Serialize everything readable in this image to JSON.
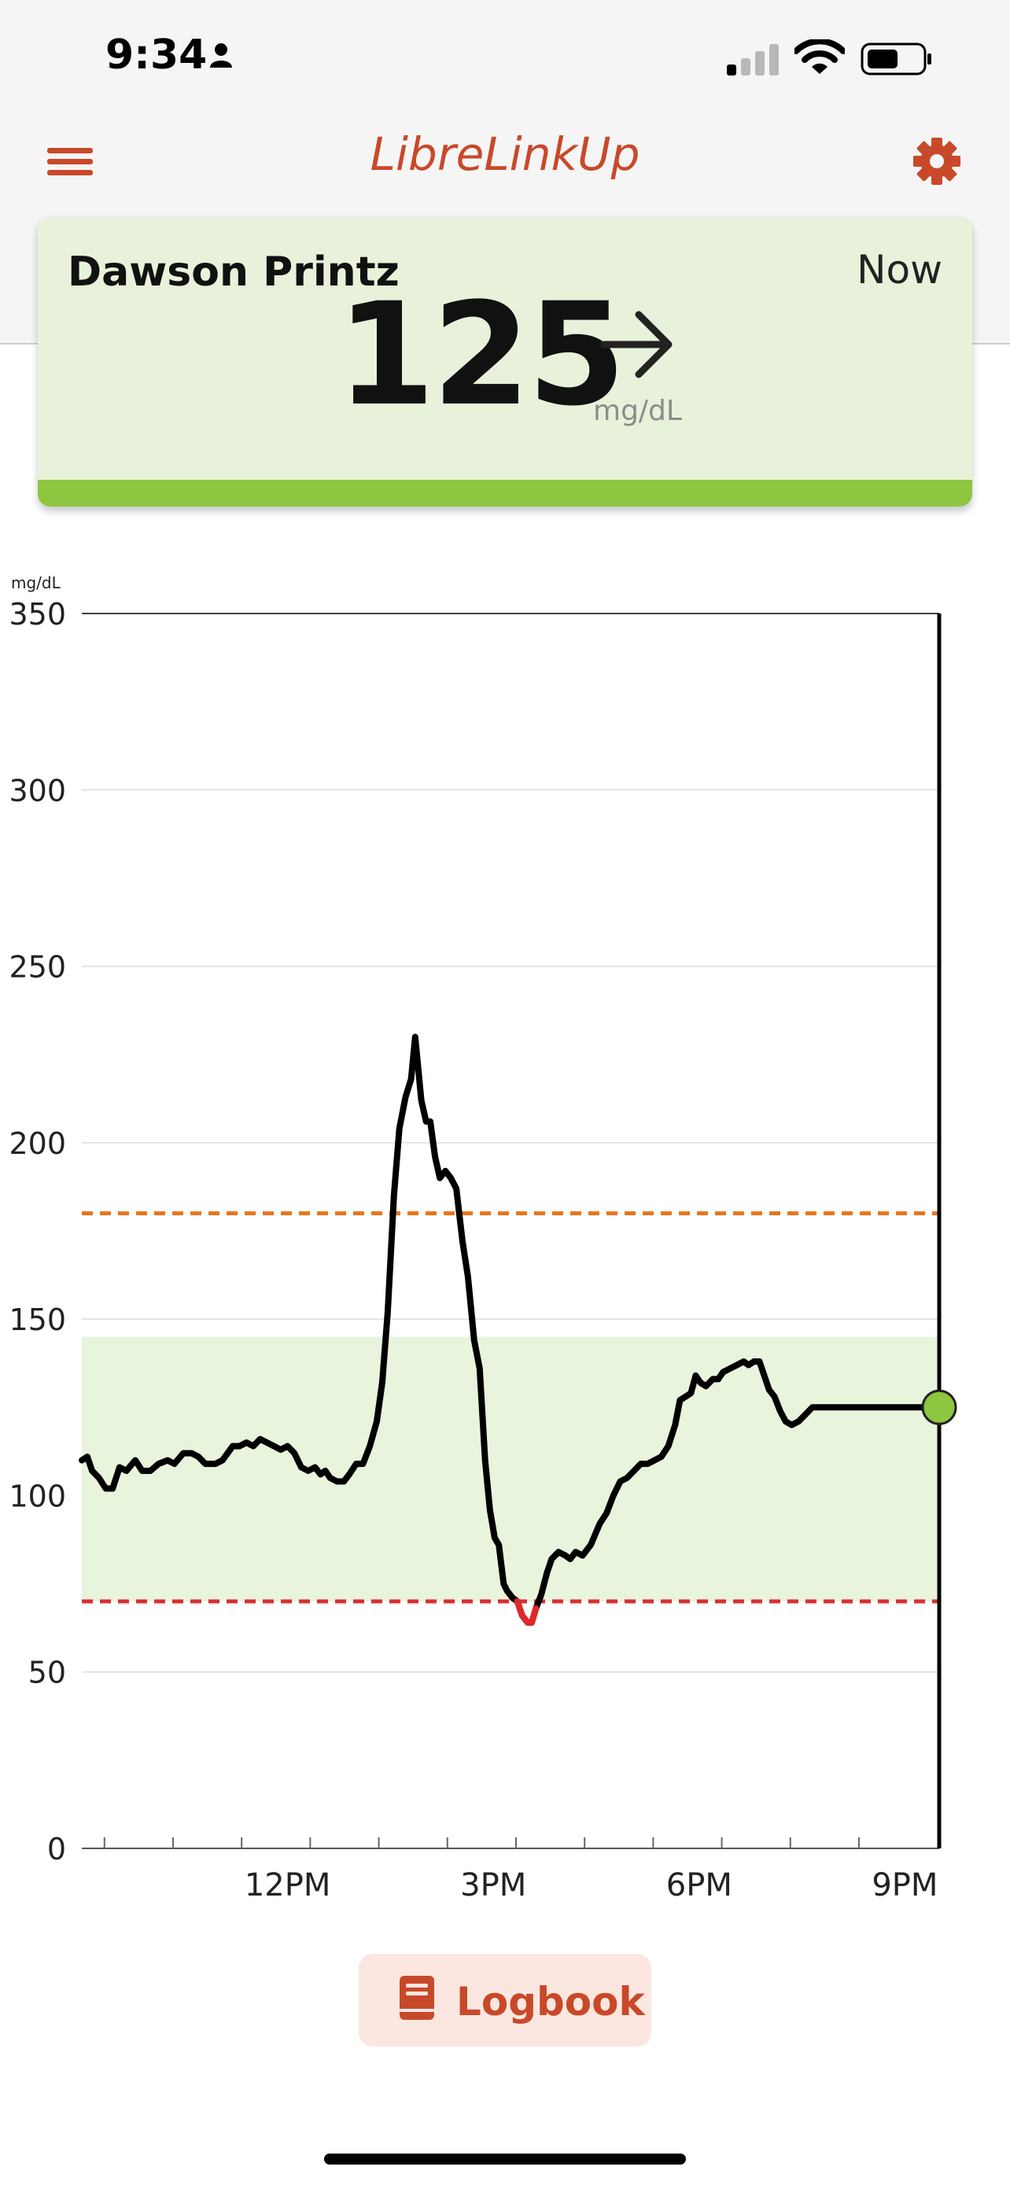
{
  "status_bar": {
    "time": "9:34"
  },
  "header": {
    "title": "LibreLinkUp"
  },
  "reading": {
    "patient_name": "Dawson Printz",
    "time_label": "Now",
    "value": "125",
    "unit": "mg/dL",
    "trend": "steady-arrow-icon",
    "status_color": "#8dc63f"
  },
  "logbook": {
    "label": "Logbook"
  },
  "colors": {
    "accent": "#c8492a",
    "card_bg": "#e8f2da",
    "target_range_fill": "#e8f4dc",
    "high_threshold": "#e8741c",
    "low_threshold": "#d83030",
    "low_segment": "#e02828",
    "current_point": "#8dc63f"
  },
  "chart_data": {
    "type": "line",
    "ylabel_unit": "mg/dL",
    "ylim": [
      0,
      350
    ],
    "yticks": [
      0,
      50,
      100,
      150,
      200,
      250,
      300,
      350
    ],
    "xlim": [
      9.0,
      21.5
    ],
    "xticks": [
      {
        "t": 12,
        "label": "12PM"
      },
      {
        "t": 15,
        "label": "3PM"
      },
      {
        "t": 18,
        "label": "6PM"
      },
      {
        "t": 21,
        "label": "9PM"
      }
    ],
    "minor_tick_hours": [
      9.33,
      10.33,
      11.33,
      12.33,
      13.33,
      14.33,
      15.33,
      16.33,
      17.33,
      18.33,
      19.33,
      20.33
    ],
    "target_range": [
      70,
      145
    ],
    "high_threshold": 180,
    "low_threshold": 70,
    "current": {
      "t": 21.5,
      "value": 125
    },
    "series": [
      {
        "points": [
          [
            9.0,
            110
          ],
          [
            9.08,
            111
          ],
          [
            9.15,
            107
          ],
          [
            9.25,
            105
          ],
          [
            9.35,
            102
          ],
          [
            9.45,
            102
          ],
          [
            9.55,
            108
          ],
          [
            9.65,
            107
          ],
          [
            9.78,
            110
          ],
          [
            9.88,
            107
          ],
          [
            10.0,
            107
          ],
          [
            10.12,
            109
          ],
          [
            10.25,
            110
          ],
          [
            10.35,
            109
          ],
          [
            10.48,
            112
          ],
          [
            10.6,
            112
          ],
          [
            10.7,
            111
          ],
          [
            10.8,
            109
          ],
          [
            10.95,
            109
          ],
          [
            11.05,
            110
          ],
          [
            11.2,
            114
          ],
          [
            11.3,
            114
          ],
          [
            11.4,
            115
          ],
          [
            11.5,
            114
          ],
          [
            11.6,
            116
          ],
          [
            11.7,
            115
          ],
          [
            11.8,
            114
          ],
          [
            11.9,
            113
          ],
          [
            12.0,
            114
          ],
          [
            12.1,
            112
          ],
          [
            12.2,
            108
          ],
          [
            12.3,
            107
          ],
          [
            12.4,
            108
          ],
          [
            12.48,
            106
          ],
          [
            12.55,
            107
          ],
          [
            12.62,
            105
          ],
          [
            12.72,
            104
          ],
          [
            12.82,
            104
          ],
          [
            12.9,
            106
          ],
          [
            13.0,
            109
          ],
          [
            13.1,
            109
          ],
          [
            13.2,
            114
          ],
          [
            13.3,
            121
          ],
          [
            13.38,
            132
          ],
          [
            13.46,
            152
          ],
          [
            13.55,
            185
          ],
          [
            13.63,
            204
          ],
          [
            13.72,
            213
          ],
          [
            13.8,
            218
          ],
          [
            13.86,
            230
          ],
          [
            13.9,
            222
          ],
          [
            13.95,
            212
          ],
          [
            14.02,
            206
          ],
          [
            14.08,
            206
          ],
          [
            14.15,
            196
          ],
          [
            14.22,
            190
          ],
          [
            14.3,
            192
          ],
          [
            14.38,
            190
          ],
          [
            14.46,
            187
          ],
          [
            14.55,
            172
          ],
          [
            14.63,
            162
          ],
          [
            14.72,
            144
          ],
          [
            14.8,
            136
          ],
          [
            14.88,
            110
          ],
          [
            14.95,
            96
          ],
          [
            15.02,
            88
          ],
          [
            15.08,
            86
          ],
          [
            15.15,
            75
          ],
          [
            15.2,
            73
          ],
          [
            15.28,
            71
          ],
          [
            15.35,
            70
          ],
          [
            15.42,
            66
          ],
          [
            15.5,
            64
          ],
          [
            15.56,
            64
          ],
          [
            15.62,
            68
          ],
          [
            15.7,
            72
          ],
          [
            15.78,
            78
          ],
          [
            15.85,
            82
          ],
          [
            15.95,
            84
          ],
          [
            16.05,
            83
          ],
          [
            16.12,
            82
          ],
          [
            16.2,
            84
          ],
          [
            16.3,
            83
          ],
          [
            16.42,
            86
          ],
          [
            16.55,
            92
          ],
          [
            16.65,
            95
          ],
          [
            16.75,
            100
          ],
          [
            16.85,
            104
          ],
          [
            16.95,
            105
          ],
          [
            17.05,
            107
          ],
          [
            17.15,
            109
          ],
          [
            17.25,
            109
          ],
          [
            17.35,
            110
          ],
          [
            17.45,
            111
          ],
          [
            17.55,
            114
          ],
          [
            17.65,
            120
          ],
          [
            17.72,
            127
          ],
          [
            17.8,
            128
          ],
          [
            17.88,
            129
          ],
          [
            17.95,
            134
          ],
          [
            18.02,
            132
          ],
          [
            18.1,
            131
          ],
          [
            18.2,
            133
          ],
          [
            18.28,
            133
          ],
          [
            18.35,
            135
          ],
          [
            18.45,
            136
          ],
          [
            18.55,
            137
          ],
          [
            18.65,
            138
          ],
          [
            18.72,
            137
          ],
          [
            18.8,
            138
          ],
          [
            18.88,
            138
          ],
          [
            18.95,
            134
          ],
          [
            19.02,
            130
          ],
          [
            19.1,
            128
          ],
          [
            19.18,
            124
          ],
          [
            19.26,
            121
          ],
          [
            19.35,
            120
          ],
          [
            19.45,
            121
          ],
          [
            19.55,
            123
          ],
          [
            19.65,
            125
          ],
          [
            19.75,
            125
          ],
          [
            19.95,
            125
          ],
          [
            20.2,
            125
          ],
          [
            20.5,
            125
          ],
          [
            20.8,
            125
          ],
          [
            21.1,
            125
          ],
          [
            21.5,
            125
          ]
        ]
      }
    ]
  }
}
